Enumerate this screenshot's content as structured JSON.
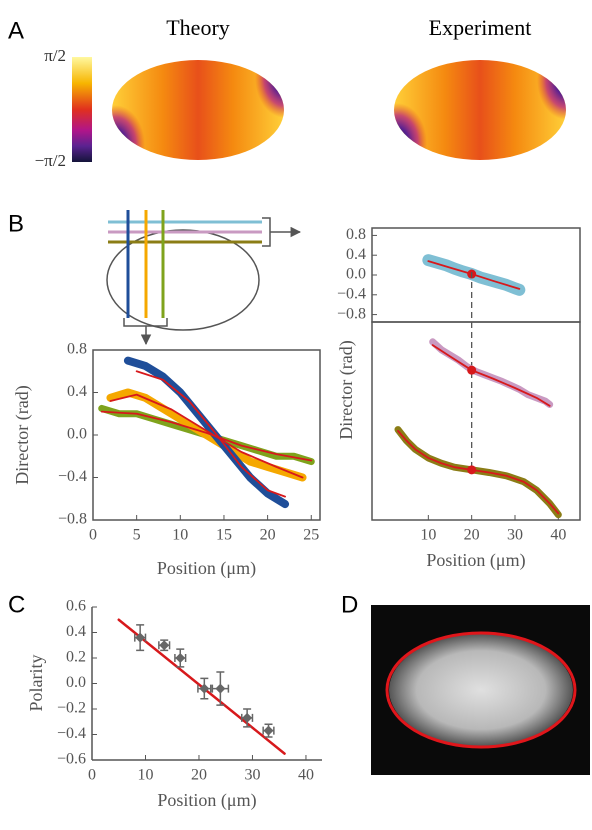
{
  "panel_labels": [
    "A",
    "B",
    "C",
    "D"
  ],
  "panel_a": {
    "titles": [
      "Theory",
      "Experiment"
    ],
    "colorbar_lim": [
      -1.5708,
      1.5708
    ],
    "colorbar_ticks": [
      {
        "value": 1.5708,
        "label": "π/2"
      },
      {
        "value": -1.5708,
        "label": "−π/2"
      }
    ]
  },
  "chart_data": [
    {
      "type": "line",
      "xlim": [
        0,
        26
      ],
      "ylim": [
        -0.8,
        0.8
      ],
      "xticks": [
        0,
        5,
        10,
        15,
        20,
        25
      ],
      "yticks": [
        {
          "value": -0.8,
          "label": "−0.8"
        },
        {
          "value": -0.4,
          "label": "−0.4"
        },
        {
          "value": 0,
          "label": "0.0"
        },
        0.4,
        0.8
      ],
      "xlabel": "Position (μm)",
      "ylabel": "Director (rad)",
      "frame": true,
      "series": [
        {
          "color": "#7fa31c",
          "linewidth": 7,
          "x": [
            1,
            3,
            5,
            7,
            9,
            11,
            13,
            15,
            17,
            19,
            21,
            23,
            25
          ],
          "values": [
            0.25,
            0.2,
            0.2,
            0.15,
            0.1,
            0.05,
            0,
            -0.05,
            -0.1,
            -0.15,
            -0.2,
            -0.2,
            -0.25
          ]
        },
        {
          "color": "#f5a800",
          "linewidth": 8,
          "x": [
            2,
            4,
            6,
            8,
            10,
            12,
            14,
            16,
            18,
            20,
            22,
            24
          ],
          "values": [
            0.35,
            0.4,
            0.35,
            0.25,
            0.15,
            0.05,
            -0.05,
            -0.15,
            -0.25,
            -0.3,
            -0.35,
            -0.4
          ]
        },
        {
          "color": "#1f4e99",
          "linewidth": 8,
          "x": [
            4,
            6,
            8,
            10,
            12,
            14,
            16,
            18,
            20,
            22
          ],
          "values": [
            0.7,
            0.65,
            0.55,
            0.4,
            0.2,
            0,
            -0.2,
            -0.4,
            -0.55,
            -0.65
          ]
        },
        {
          "color": "#d7191c",
          "linewidth": 1.8,
          "x": [
            5,
            8,
            11,
            14,
            17,
            20,
            22
          ],
          "values": [
            0.6,
            0.52,
            0.32,
            0.02,
            -0.3,
            -0.52,
            -0.58
          ]
        },
        {
          "color": "#d7191c",
          "linewidth": 1.8,
          "x": [
            2,
            5,
            9,
            13,
            17,
            21,
            24
          ],
          "values": [
            0.32,
            0.38,
            0.24,
            0.04,
            -0.16,
            -0.3,
            -0.4
          ]
        },
        {
          "color": "#d7191c",
          "linewidth": 1.8,
          "x": [
            1,
            5,
            9,
            13,
            17,
            21,
            25
          ],
          "values": [
            0.22,
            0.2,
            0.12,
            0.02,
            -0.1,
            -0.18,
            -0.24
          ]
        }
      ]
    },
    {
      "type": "line",
      "xlim": [
        -3,
        45
      ],
      "ylim": [
        -0.95,
        0.95
      ],
      "yticks": [
        {
          "value": -0.8,
          "label": "−0.8"
        },
        {
          "value": -0.4,
          "label": "−0.4"
        },
        {
          "value": 0,
          "label": "0.0"
        },
        0.4,
        0.8
      ],
      "frame": true,
      "series": [
        {
          "color": "#7fbfd4",
          "linewidth": 12,
          "x": [
            10,
            12,
            14,
            16,
            18,
            20,
            22,
            24,
            26,
            28,
            30,
            31
          ],
          "values": [
            0.3,
            0.25,
            0.2,
            0.13,
            0.07,
            0.02,
            -0.05,
            -0.1,
            -0.15,
            -0.2,
            -0.27,
            -0.3
          ]
        },
        {
          "color": "#d7191c",
          "linewidth": 1.8,
          "x": [
            10,
            15,
            20,
            25,
            31
          ],
          "values": [
            0.28,
            0.15,
            0.02,
            -0.12,
            -0.28
          ]
        },
        {
          "color": "#d7191c",
          "marker": "circle",
          "x": [
            20
          ],
          "values": [
            0.02
          ]
        }
      ]
    },
    {
      "type": "line",
      "xlim": [
        -3,
        45
      ],
      "ylim": [
        -2.7,
        0.3
      ],
      "xticks": [
        10,
        20,
        30,
        40
      ],
      "xlabel": "Position (μm)",
      "ylabel": "Director (rad)",
      "frame": true,
      "guide_x": 20,
      "series": [
        {
          "color": "#c99ac2",
          "linewidth": 7,
          "x": [
            11,
            13,
            15,
            17,
            19,
            21,
            23,
            25,
            27,
            29,
            31,
            33,
            35,
            37,
            38
          ],
          "values": [
            0,
            -0.12,
            -0.2,
            -0.28,
            -0.38,
            -0.45,
            -0.5,
            -0.55,
            -0.6,
            -0.66,
            -0.72,
            -0.8,
            -0.85,
            -0.9,
            -0.95
          ]
        },
        {
          "color": "#d7191c",
          "linewidth": 1.8,
          "x": [
            11,
            15,
            20,
            25,
            30,
            35,
            38
          ],
          "values": [
            -0.05,
            -0.22,
            -0.43,
            -0.56,
            -0.7,
            -0.85,
            -0.97
          ]
        },
        {
          "color": "#8b7d16",
          "linewidth": 7,
          "x": [
            3,
            5,
            7,
            10,
            13,
            16,
            20,
            24,
            28,
            32,
            35,
            38,
            40
          ],
          "values": [
            -1.33,
            -1.5,
            -1.63,
            -1.76,
            -1.84,
            -1.9,
            -1.94,
            -1.98,
            -2.03,
            -2.12,
            -2.25,
            -2.45,
            -2.62
          ]
        },
        {
          "color": "#d7191c",
          "linewidth": 1.8,
          "x": [
            3,
            5,
            7,
            10,
            13,
            16,
            20,
            24,
            28,
            32,
            35,
            38,
            40
          ],
          "values": [
            -1.35,
            -1.5,
            -1.63,
            -1.76,
            -1.84,
            -1.9,
            -1.94,
            -1.98,
            -2.03,
            -2.12,
            -2.25,
            -2.45,
            -2.6
          ]
        },
        {
          "color": "#d7191c",
          "marker": "circle",
          "x": [
            20,
            20
          ],
          "values": [
            -0.43,
            -1.94
          ]
        }
      ]
    },
    {
      "type": "scatter",
      "xlim": [
        0,
        43
      ],
      "ylim": [
        -0.6,
        0.6
      ],
      "xticks": [
        0,
        10,
        20,
        30,
        40
      ],
      "yticks": [
        {
          "value": -0.6,
          "label": "−0.6"
        },
        {
          "value": -0.4,
          "label": "−0.4"
        },
        {
          "value": -0.2,
          "label": "−0.2"
        },
        {
          "value": 0,
          "label": "0.0"
        },
        0.2,
        0.4,
        0.6
      ],
      "xlabel": "Position (μm)",
      "ylabel": "Polarity",
      "frame": false,
      "series": [
        {
          "color": "#d7191c",
          "linewidth": 2.5,
          "x": [
            5,
            36
          ],
          "values": [
            0.5,
            -0.55
          ]
        },
        {
          "color": "#666666",
          "marker": "diamond",
          "x": [
            9,
            13.5,
            16.5,
            21,
            24,
            29,
            33
          ],
          "values": [
            0.36,
            0.3,
            0.2,
            -0.04,
            -0.04,
            -0.27,
            -0.37
          ],
          "xerr": [
            1,
            1,
            1,
            1.2,
            1.5,
            1,
            1
          ],
          "yerr": [
            0.1,
            0.04,
            0.07,
            0.08,
            0.13,
            0.07,
            0.05
          ]
        }
      ]
    }
  ]
}
